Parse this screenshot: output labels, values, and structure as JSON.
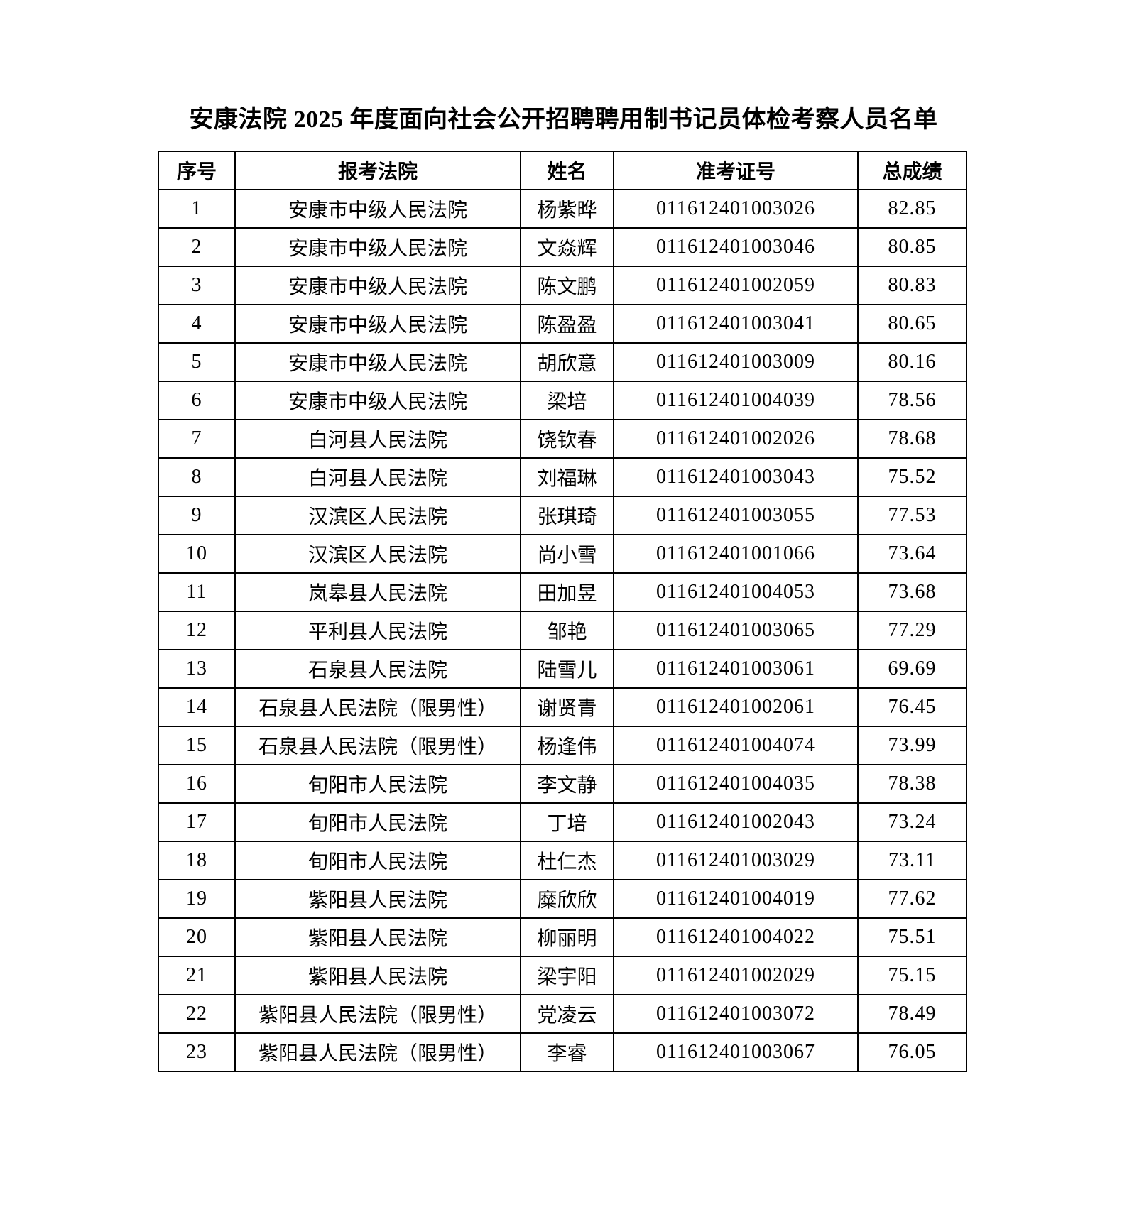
{
  "title": "安康法院 2025 年度面向社会公开招聘聘用制书记员体检考察人员名单",
  "table": {
    "headers": {
      "index": "序号",
      "court": "报考法院",
      "name": "姓名",
      "ticket": "准考证号",
      "score": "总成绩"
    },
    "rows": [
      {
        "index": "1",
        "court": "安康市中级人民法院",
        "name": "杨紫晔",
        "ticket": "011612401003026",
        "score": "82.85"
      },
      {
        "index": "2",
        "court": "安康市中级人民法院",
        "name": "文焱辉",
        "ticket": "011612401003046",
        "score": "80.85"
      },
      {
        "index": "3",
        "court": "安康市中级人民法院",
        "name": "陈文鹏",
        "ticket": "011612401002059",
        "score": "80.83"
      },
      {
        "index": "4",
        "court": "安康市中级人民法院",
        "name": "陈盈盈",
        "ticket": "011612401003041",
        "score": "80.65"
      },
      {
        "index": "5",
        "court": "安康市中级人民法院",
        "name": "胡欣意",
        "ticket": "011612401003009",
        "score": "80.16"
      },
      {
        "index": "6",
        "court": "安康市中级人民法院",
        "name": "梁培",
        "ticket": "011612401004039",
        "score": "78.56"
      },
      {
        "index": "7",
        "court": "白河县人民法院",
        "name": "饶钦春",
        "ticket": "011612401002026",
        "score": "78.68"
      },
      {
        "index": "8",
        "court": "白河县人民法院",
        "name": "刘福琳",
        "ticket": "011612401003043",
        "score": "75.52"
      },
      {
        "index": "9",
        "court": "汉滨区人民法院",
        "name": "张琪琦",
        "ticket": "011612401003055",
        "score": "77.53"
      },
      {
        "index": "10",
        "court": "汉滨区人民法院",
        "name": "尚小雪",
        "ticket": "011612401001066",
        "score": "73.64"
      },
      {
        "index": "11",
        "court": "岚皋县人民法院",
        "name": "田加昱",
        "ticket": "011612401004053",
        "score": "73.68"
      },
      {
        "index": "12",
        "court": "平利县人民法院",
        "name": "邹艳",
        "ticket": "011612401003065",
        "score": "77.29"
      },
      {
        "index": "13",
        "court": "石泉县人民法院",
        "name": "陆雪儿",
        "ticket": "011612401003061",
        "score": "69.69"
      },
      {
        "index": "14",
        "court": "石泉县人民法院（限男性）",
        "name": "谢贤青",
        "ticket": "011612401002061",
        "score": "76.45"
      },
      {
        "index": "15",
        "court": "石泉县人民法院（限男性）",
        "name": "杨逢伟",
        "ticket": "011612401004074",
        "score": "73.99"
      },
      {
        "index": "16",
        "court": "旬阳市人民法院",
        "name": "李文静",
        "ticket": "011612401004035",
        "score": "78.38"
      },
      {
        "index": "17",
        "court": "旬阳市人民法院",
        "name": "丁培",
        "ticket": "011612401002043",
        "score": "73.24"
      },
      {
        "index": "18",
        "court": "旬阳市人民法院",
        "name": "杜仁杰",
        "ticket": "011612401003029",
        "score": "73.11"
      },
      {
        "index": "19",
        "court": "紫阳县人民法院",
        "name": "糜欣欣",
        "ticket": "011612401004019",
        "score": "77.62"
      },
      {
        "index": "20",
        "court": "紫阳县人民法院",
        "name": "柳丽明",
        "ticket": "011612401004022",
        "score": "75.51"
      },
      {
        "index": "21",
        "court": "紫阳县人民法院",
        "name": "梁宇阳",
        "ticket": "011612401002029",
        "score": "75.15"
      },
      {
        "index": "22",
        "court": "紫阳县人民法院（限男性）",
        "name": "党凌云",
        "ticket": "011612401003072",
        "score": "78.49"
      },
      {
        "index": "23",
        "court": "紫阳县人民法院（限男性）",
        "name": "李睿",
        "ticket": "011612401003067",
        "score": "76.05"
      }
    ]
  }
}
